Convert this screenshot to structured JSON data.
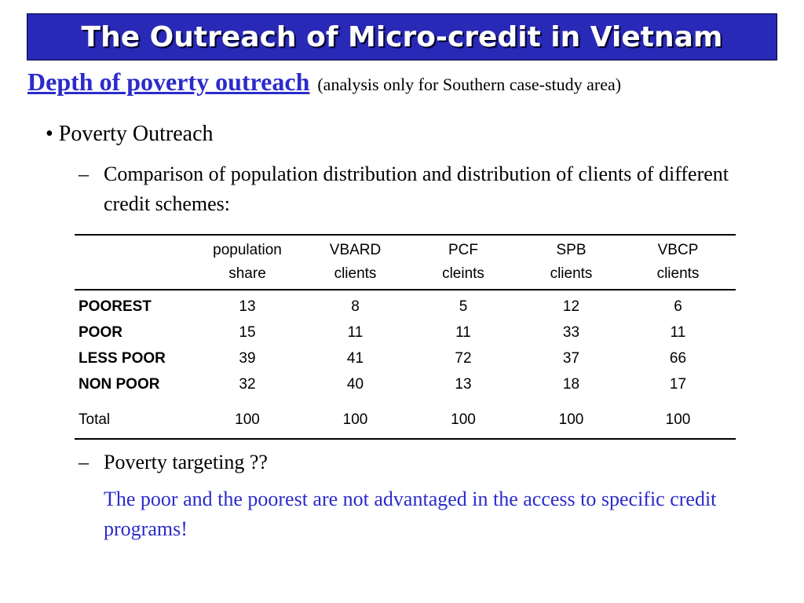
{
  "title": "The Outreach of Micro-credit in Vietnam",
  "subtitle": {
    "main": "Depth of poverty outreach",
    "note": "(analysis only for Southern case-study area)"
  },
  "bullet": "• Poverty Outreach",
  "dash_char": "–",
  "comparison_text": "Comparison of population distribution and distribution of clients of different credit schemes:",
  "table": {
    "headers": [
      {
        "line1": "population",
        "line2": "share"
      },
      {
        "line1": "VBARD",
        "line2": "clients"
      },
      {
        "line1": "PCF",
        "line2": "cleints"
      },
      {
        "line1": "SPB",
        "line2": "clients"
      },
      {
        "line1": "VBCP",
        "line2": "clients"
      }
    ],
    "rows": [
      {
        "label": "POOREST",
        "values": [
          "13",
          "8",
          "5",
          "12",
          "6"
        ]
      },
      {
        "label": "POOR",
        "values": [
          "15",
          "11",
          "11",
          "33",
          "11"
        ]
      },
      {
        "label": "LESS POOR",
        "values": [
          "39",
          "41",
          "72",
          "37",
          "66"
        ]
      },
      {
        "label": "NON POOR",
        "values": [
          "32",
          "40",
          "13",
          "18",
          "17"
        ]
      }
    ],
    "total": {
      "label": "Total",
      "values": [
        "100",
        "100",
        "100",
        "100",
        "100"
      ]
    }
  },
  "targeting_text": "Poverty targeting ??",
  "conclusion": "The poor and the poorest are not advantaged in the access to specific credit programs!",
  "colors": {
    "title_bg": "#2929b8",
    "title_text": "#ffffff",
    "accent_blue": "#2b2bcc"
  }
}
